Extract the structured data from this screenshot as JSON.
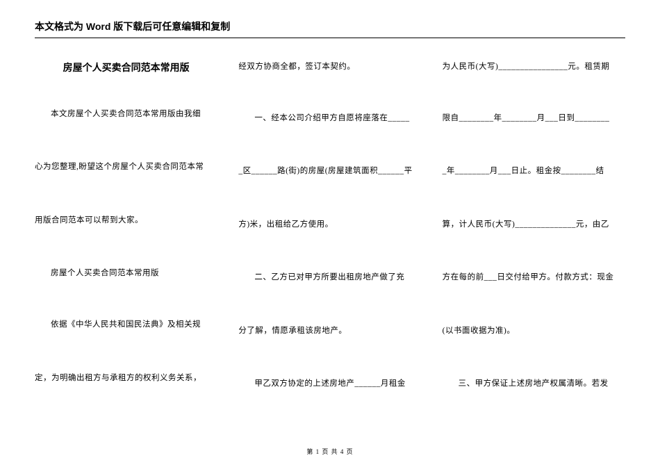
{
  "header": "本文格式为 Word 版下载后可任意编辑和复制",
  "title": "房屋个人买卖合同范本常用版",
  "col1": {
    "p1": "本文房屋个人买卖合同范本常用版由我细",
    "p2": "心为您整理,盼望这个房屋个人买卖合同范本常",
    "p3": "用版合同范本可以帮到大家。",
    "p4": "房屋个人买卖合同范本常用版",
    "p5": "依据《中华人民共和国民法典》及相关规",
    "p6": "定，为明确出租方与承租方的权利义务关系，"
  },
  "col2": {
    "p1": "经双方协商全都，签订本契约。",
    "p2": "一、经本公司介绍甲方自愿将座落在_____",
    "p3": "_区______路(街)的房屋(房屋建筑面积______平",
    "p4": "方)米，出租给乙方使用。",
    "p5": "二、乙方已对甲方所要出租房地产做了充",
    "p6": "分了解，情愿承租该房地产。",
    "p7": "甲乙双方协定的上述房地产______月租金"
  },
  "col3": {
    "p1": "为人民币(大写)________________元。租赁期",
    "p2": "限自________年________月___日到________",
    "p3": "_年________月___日止。租金按________结",
    "p4": "算，计人民币(大写)______________元，由乙",
    "p5": "方在每的前___日交付给甲方。付款方式：现金",
    "p6": "(以书面收据为准)。",
    "p7": "三、甲方保证上述房地产权属清晰。若发"
  },
  "footer": "第 1 页 共 4 页"
}
